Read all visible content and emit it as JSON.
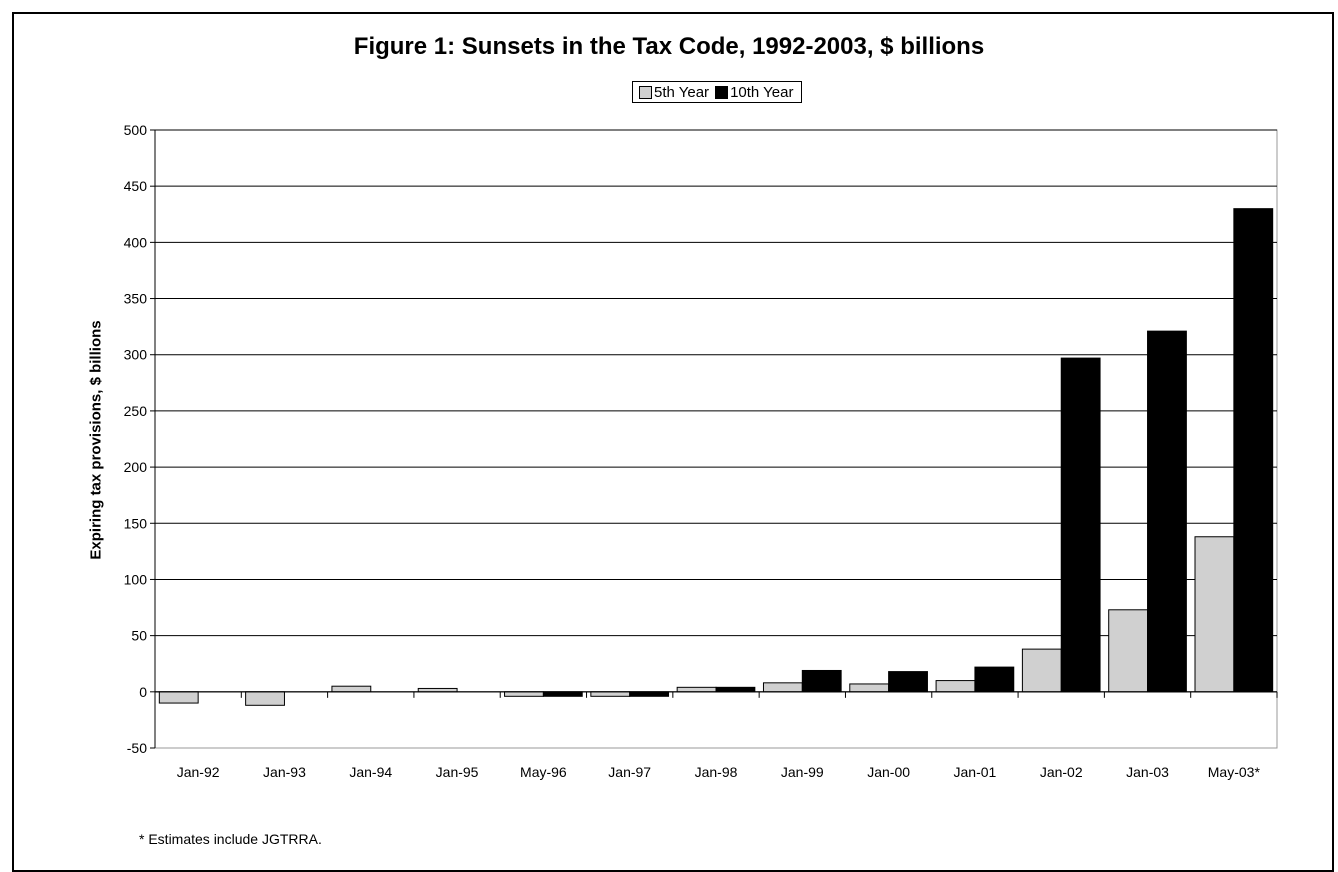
{
  "chart_data": {
    "type": "bar",
    "title": "Figure 1: Sunsets in the Tax Code, 1992-2003, $ billions",
    "ylabel": "Expiring tax provisions, $ billions",
    "xlabel": "",
    "ylim": [
      -50,
      500
    ],
    "yticks": [
      -50,
      0,
      50,
      100,
      150,
      200,
      250,
      300,
      350,
      400,
      450,
      500
    ],
    "grid": true,
    "legend_position": "top-center",
    "categories": [
      "Jan-92",
      "Jan-93",
      "Jan-94",
      "Jan-95",
      "May-96",
      "Jan-97",
      "Jan-98",
      "Jan-99",
      "Jan-00",
      "Jan-01",
      "Jan-02",
      "Jan-03",
      "May-03*"
    ],
    "series": [
      {
        "name": "5th Year",
        "color": "#d0d0d0",
        "values": [
          -10,
          -12,
          5,
          3,
          -4,
          -4,
          4,
          8,
          7,
          10,
          38,
          73,
          138
        ]
      },
      {
        "name": "10th Year",
        "color": "#000000",
        "values": [
          null,
          null,
          null,
          null,
          -4,
          -4,
          4,
          19,
          18,
          22,
          297,
          321,
          430
        ]
      }
    ],
    "footnote": "* Estimates include JGTRRA."
  }
}
